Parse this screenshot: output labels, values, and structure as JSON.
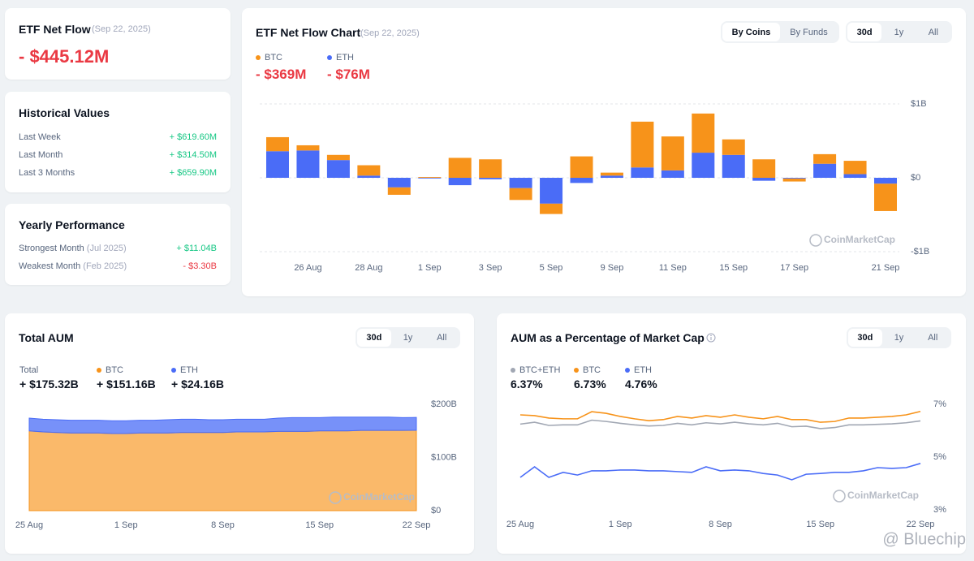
{
  "summary": {
    "title": "ETF Net Flow",
    "date": "(Sep 22, 2025)",
    "value": "- $445.12M"
  },
  "historical": {
    "title": "Historical Values",
    "rows": [
      {
        "label": "Last Week",
        "value": "+ $619.60M"
      },
      {
        "label": "Last Month",
        "value": "+ $314.50M"
      },
      {
        "label": "Last 3 Months",
        "value": "+ $659.90M"
      }
    ]
  },
  "yearly": {
    "title": "Yearly Performance",
    "rows": [
      {
        "label": "Strongest Month",
        "period": "(Jul 2025)",
        "value": "+ $11.04B"
      },
      {
        "label": "Weakest Month",
        "period": "(Feb 2025)",
        "value": "- $3.30B"
      }
    ]
  },
  "watermark": "@ Bluechip",
  "chart_data": [
    {
      "type": "bar",
      "stacked": true,
      "grid": true,
      "title": "ETF Net Flow Chart",
      "subtitle": "(Sep 22, 2025)",
      "view_options": [
        "By Coins",
        "By Funds"
      ],
      "range_options": [
        "30d",
        "1y",
        "All"
      ],
      "watermark": "CoinMarketCap",
      "categories": [
        null,
        "26 Aug",
        null,
        "28 Aug",
        null,
        "1 Sep",
        null,
        "3 Sep",
        null,
        "5 Sep",
        null,
        "9 Sep",
        null,
        "11 Sep",
        null,
        "15 Sep",
        null,
        "17 Sep",
        null,
        null,
        "21 Sep"
      ],
      "series": [
        {
          "name": "ETH",
          "color": "#4a6cf7",
          "summary": "- $76M",
          "values": [
            0.36,
            0.37,
            0.24,
            0.03,
            -0.13,
            0,
            -0.1,
            -0.02,
            -0.14,
            -0.35,
            -0.07,
            0.03,
            0.14,
            0.1,
            0.34,
            0.31,
            -0.04,
            -0.01,
            0.19,
            0.05,
            -0.08
          ]
        },
        {
          "name": "BTC",
          "color": "#f7931a",
          "summary": "- $369M",
          "values": [
            0.19,
            0.07,
            0.07,
            0.14,
            -0.1,
            0.01,
            0.27,
            0.25,
            -0.16,
            -0.14,
            0.29,
            0.04,
            0.62,
            0.46,
            0.53,
            0.21,
            0.25,
            -0.04,
            0.13,
            0.18,
            -0.37
          ]
        }
      ],
      "ylim": [
        -1,
        1
      ],
      "yticks": [
        {
          "value": 1,
          "label": "$1B"
        },
        {
          "value": 0,
          "label": "$0"
        },
        {
          "value": -1,
          "label": "-$1B"
        }
      ]
    },
    {
      "type": "area",
      "stacked": true,
      "grid": false,
      "title": "Total AUM",
      "range_options": [
        "30d",
        "1y",
        "All"
      ],
      "watermark": "CoinMarketCap",
      "total": {
        "name": "Total",
        "summary": "+ $175.32B"
      },
      "categories": [
        "25 Aug",
        null,
        null,
        null,
        null,
        null,
        null,
        "1 Sep",
        null,
        null,
        null,
        null,
        null,
        null,
        "8 Sep",
        null,
        null,
        null,
        null,
        null,
        null,
        "15 Sep",
        null,
        null,
        null,
        null,
        null,
        null,
        "22 Sep"
      ],
      "series": [
        {
          "name": "BTC",
          "color": "#f7931a",
          "summary": "+ $151.16B",
          "values": [
            150,
            148,
            147,
            146,
            146,
            146,
            145,
            145,
            146,
            146,
            146,
            147,
            147,
            147,
            147,
            148,
            148,
            148,
            149,
            149,
            149,
            150,
            150,
            150,
            151,
            151,
            151,
            151,
            151.16
          ]
        },
        {
          "name": "ETH",
          "color": "#4a6cf7",
          "summary": "+ $24.16B",
          "values": [
            24,
            24,
            24,
            24,
            24,
            24,
            24,
            24,
            24,
            24,
            25,
            25,
            25,
            24,
            24,
            24,
            24,
            24,
            25,
            26,
            26,
            25,
            26,
            26,
            25,
            25,
            25,
            24,
            24.16
          ]
        }
      ],
      "ylim": [
        0,
        200
      ],
      "yticks": [
        {
          "value": 0,
          "label": "$0"
        },
        {
          "value": 100,
          "label": "$100B"
        },
        {
          "value": 200,
          "label": "$200B"
        }
      ]
    },
    {
      "type": "line",
      "grid": false,
      "title": "AUM as a Percentage of Market Cap",
      "range_options": [
        "30d",
        "1y",
        "All"
      ],
      "watermark": "CoinMarketCap",
      "categories": [
        "25 Aug",
        null,
        null,
        null,
        null,
        null,
        null,
        "1 Sep",
        null,
        null,
        null,
        null,
        null,
        null,
        "8 Sep",
        null,
        null,
        null,
        null,
        null,
        null,
        "15 Sep",
        null,
        null,
        null,
        null,
        null,
        null,
        "22 Sep"
      ],
      "series": [
        {
          "name": "BTC+ETH",
          "color": "#a1a7b3",
          "summary": "6.37%",
          "values": [
            6.25,
            6.32,
            6.2,
            6.22,
            6.22,
            6.4,
            6.35,
            6.28,
            6.22,
            6.18,
            6.2,
            6.28,
            6.22,
            6.3,
            6.26,
            6.32,
            6.26,
            6.22,
            6.28,
            6.15,
            6.17,
            6.08,
            6.12,
            6.22,
            6.22,
            6.24,
            6.26,
            6.3,
            6.37
          ]
        },
        {
          "name": "BTC",
          "color": "#f7931a",
          "summary": "6.73%",
          "values": [
            6.6,
            6.57,
            6.48,
            6.45,
            6.45,
            6.72,
            6.66,
            6.54,
            6.45,
            6.38,
            6.42,
            6.54,
            6.48,
            6.57,
            6.51,
            6.6,
            6.51,
            6.45,
            6.54,
            6.42,
            6.42,
            6.32,
            6.35,
            6.48,
            6.48,
            6.51,
            6.54,
            6.6,
            6.73
          ]
        },
        {
          "name": "ETH",
          "color": "#4a6cf7",
          "summary": "4.76%",
          "values": [
            4.23,
            4.63,
            4.23,
            4.42,
            4.32,
            4.48,
            4.48,
            4.51,
            4.51,
            4.48,
            4.48,
            4.45,
            4.42,
            4.63,
            4.48,
            4.51,
            4.48,
            4.38,
            4.32,
            4.14,
            4.35,
            4.38,
            4.42,
            4.42,
            4.48,
            4.6,
            4.57,
            4.6,
            4.76
          ]
        }
      ],
      "ylim": [
        3,
        7
      ],
      "yticks": [
        {
          "value": 3,
          "label": "3%"
        },
        {
          "value": 5,
          "label": "5%"
        },
        {
          "value": 7,
          "label": "7%"
        }
      ]
    }
  ]
}
